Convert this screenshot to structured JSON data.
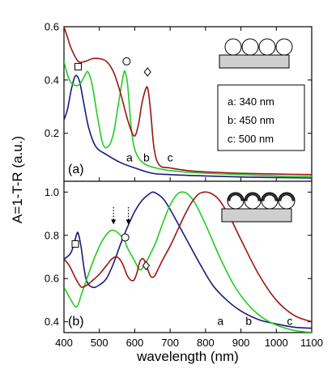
{
  "chart_data": {
    "type": "line",
    "xlabel": "wavelength (nm)",
    "ylabel": "A=1-T-R (a.u.)",
    "xlim": [
      400,
      1100
    ],
    "x_ticks": [
      "400",
      "500",
      "600",
      "700",
      "800",
      "900",
      "1000",
      "1100"
    ],
    "legend": {
      "placement": "top-right of panel (a)",
      "entries": [
        "a: 340 nm",
        "b: 450 nm",
        "c: 500 nm"
      ]
    },
    "panels": [
      {
        "label": "(a)",
        "ylim": [
          0.02,
          0.6
        ],
        "y_ticks": [
          "0.2",
          "0.4",
          "0.6"
        ],
        "series": [
          {
            "name": "a",
            "color": "#1a1a7a",
            "x": [
              400,
              410,
              420,
              430,
              437,
              445,
              455,
              470,
              490,
              520,
              560,
              600,
              650,
              700,
              800,
              900,
              1000,
              1100
            ],
            "y": [
              0.25,
              0.29,
              0.36,
              0.41,
              0.415,
              0.39,
              0.32,
              0.22,
              0.15,
              0.12,
              0.09,
              0.07,
              0.05,
              0.045,
              0.04,
              0.036,
              0.034,
              0.032
            ]
          },
          {
            "name": "b",
            "color": "#22cc22",
            "x": [
              400,
              410,
              420,
              432,
              440,
              448,
              460,
              468,
              480,
              495,
              510,
              525,
              540,
              555,
              568,
              573,
              580,
              590,
              600,
              615,
              635,
              660,
              700,
              800,
              900,
              1000,
              1100
            ],
            "y": [
              0.47,
              0.42,
              0.39,
              0.38,
              0.38,
              0.39,
              0.42,
              0.43,
              0.38,
              0.26,
              0.16,
              0.15,
              0.2,
              0.32,
              0.42,
              0.43,
              0.38,
              0.22,
              0.14,
              0.1,
              0.08,
              0.07,
              0.06,
              0.05,
              0.045,
              0.04,
              0.038
            ]
          },
          {
            "name": "c",
            "color": "#9a1414",
            "x": [
              400,
              410,
              420,
              440,
              460,
              480,
              500,
              520,
              540,
              560,
              580,
              598,
              610,
              620,
              632,
              638,
              645,
              655,
              670,
              700,
              750,
              800,
              900,
              1000,
              1100
            ],
            "y": [
              0.6,
              0.56,
              0.52,
              0.47,
              0.47,
              0.48,
              0.48,
              0.47,
              0.43,
              0.35,
              0.25,
              0.19,
              0.23,
              0.31,
              0.37,
              0.36,
              0.28,
              0.14,
              0.08,
              0.07,
              0.06,
              0.055,
              0.05,
              0.047,
              0.045
            ]
          }
        ],
        "annotations": [
          {
            "marker": "square",
            "x": 440,
            "y": 0.45
          },
          {
            "marker": "circle",
            "x": 577,
            "y": 0.47
          },
          {
            "marker": "diamond",
            "x": 636,
            "y": 0.43
          }
        ],
        "curve_labels": [
          {
            "text": "a",
            "x": 585,
            "y": 0.095
          },
          {
            "text": "b",
            "x": 633,
            "y": 0.095
          },
          {
            "text": "c",
            "x": 700,
            "y": 0.095
          }
        ]
      },
      {
        "label": "(b)",
        "ylim": [
          0.35,
          1.05
        ],
        "y_ticks": [
          "0.4",
          "0.6",
          "0.8",
          "1.0"
        ],
        "series": [
          {
            "name": "a",
            "color": "#1a1a7a",
            "x": [
              400,
              420,
              435,
              440,
              448,
              462,
              480,
              500,
              520,
              540,
              560,
              580,
              600,
              620,
              640,
              650,
              660,
              680,
              700,
              740,
              780,
              820,
              860,
              900,
              950,
              1000,
              1050,
              1100
            ],
            "y": [
              0.69,
              0.72,
              0.8,
              0.81,
              0.75,
              0.6,
              0.56,
              0.57,
              0.6,
              0.67,
              0.76,
              0.84,
              0.91,
              0.96,
              0.99,
              1.0,
              0.995,
              0.97,
              0.92,
              0.8,
              0.68,
              0.57,
              0.5,
              0.45,
              0.41,
              0.39,
              0.375,
              0.37
            ]
          },
          {
            "name": "b",
            "color": "#22cc22",
            "x": [
              400,
              420,
              432,
              440,
              450,
              465,
              480,
              495,
              510,
              530,
              545,
              560,
              570,
              580,
              590,
              600,
              615,
              630,
              640,
              660,
              680,
              700,
              720,
              735,
              750,
              770,
              800,
              840,
              880,
              920,
              960,
              1000,
              1050,
              1100
            ],
            "y": [
              0.56,
              0.5,
              0.47,
              0.48,
              0.53,
              0.6,
              0.67,
              0.73,
              0.78,
              0.82,
              0.82,
              0.8,
              0.78,
              0.74,
              0.71,
              0.68,
              0.64,
              0.67,
              0.7,
              0.77,
              0.86,
              0.94,
              0.99,
              1.0,
              0.99,
              0.95,
              0.85,
              0.7,
              0.57,
              0.48,
              0.42,
              0.385,
              0.36,
              0.35
            ]
          },
          {
            "name": "c",
            "color": "#9a1414",
            "x": [
              400,
              415,
              430,
              440,
              450,
              465,
              480,
              500,
              520,
              535,
              550,
              565,
              580,
              595,
              605,
              615,
              625,
              635,
              645,
              655,
              665,
              680,
              700,
              720,
              740,
              760,
              780,
              800,
              820,
              840,
              870,
              900,
              950,
              1000,
              1050,
              1100
            ],
            "y": [
              0.69,
              0.66,
              0.61,
              0.58,
              0.56,
              0.57,
              0.59,
              0.62,
              0.66,
              0.69,
              0.7,
              0.67,
              0.61,
              0.59,
              0.62,
              0.68,
              0.69,
              0.65,
              0.61,
              0.61,
              0.64,
              0.69,
              0.75,
              0.82,
              0.89,
              0.95,
              0.99,
              1.0,
              0.99,
              0.96,
              0.88,
              0.78,
              0.62,
              0.5,
              0.43,
              0.4
            ]
          }
        ],
        "annotations": [
          {
            "marker": "square",
            "x": 432,
            "y": 0.76
          },
          {
            "marker": "circle",
            "x": 573,
            "y": 0.79
          },
          {
            "marker": "diamond",
            "x": 632,
            "y": 0.66
          },
          {
            "marker": "dotted-arrow",
            "x": 540,
            "y_from": 0.93,
            "y_to": 0.85
          },
          {
            "marker": "dotted-arrow",
            "x": 582,
            "y_from": 0.93,
            "y_to": 0.85
          }
        ],
        "curve_labels": [
          {
            "text": "a",
            "x": 842,
            "y": 0.385
          },
          {
            "text": "b",
            "x": 922,
            "y": 0.385
          },
          {
            "text": "c",
            "x": 1038,
            "y": 0.385
          }
        ]
      }
    ]
  }
}
